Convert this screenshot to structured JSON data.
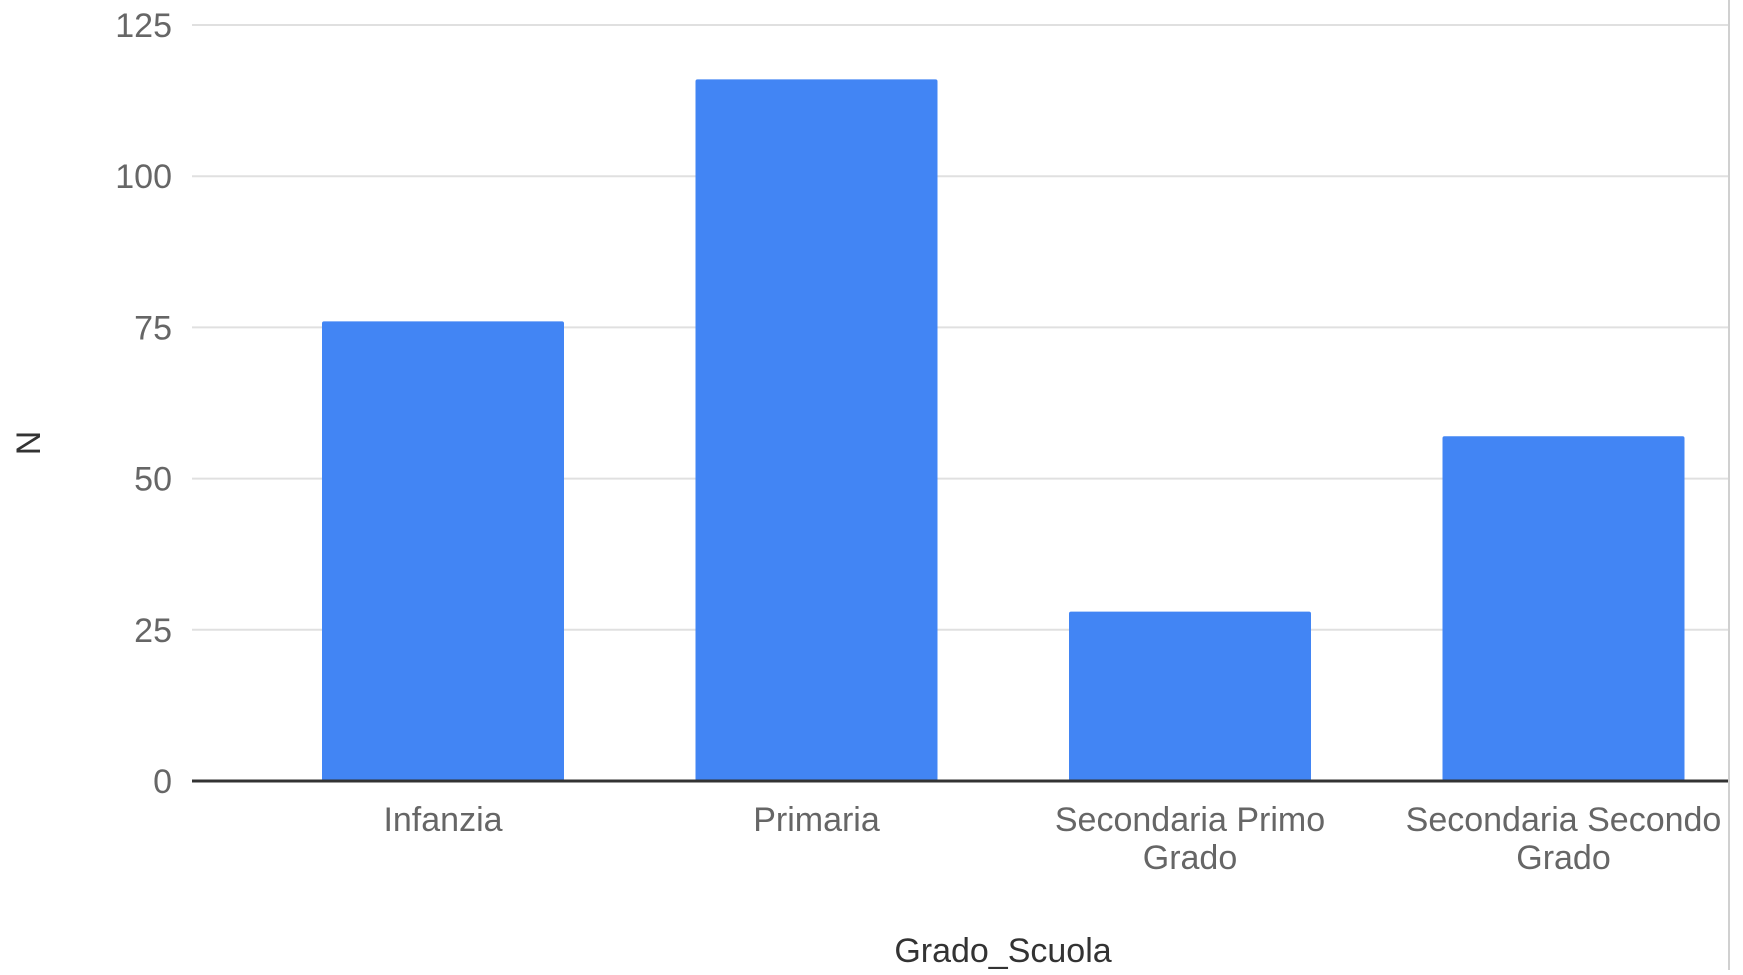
{
  "chart_data": {
    "type": "bar",
    "categories": [
      [
        "Infanzia"
      ],
      [
        "Primaria"
      ],
      [
        "Secondaria Primo",
        "Grado"
      ],
      [
        "Secondaria Secondo",
        "Grado"
      ]
    ],
    "values": [
      76,
      116,
      28,
      57
    ],
    "title": "",
    "xlabel": "Grado_Scuola",
    "ylabel": "N",
    "ylim": [
      0,
      125
    ],
    "yticks": [
      "0",
      "25",
      "50",
      "75",
      "100",
      "125"
    ],
    "grid": true,
    "legend": "none",
    "bar_color": "#4285F4",
    "grid_color": "#e0e0e0",
    "baseline_color": "#333333"
  }
}
